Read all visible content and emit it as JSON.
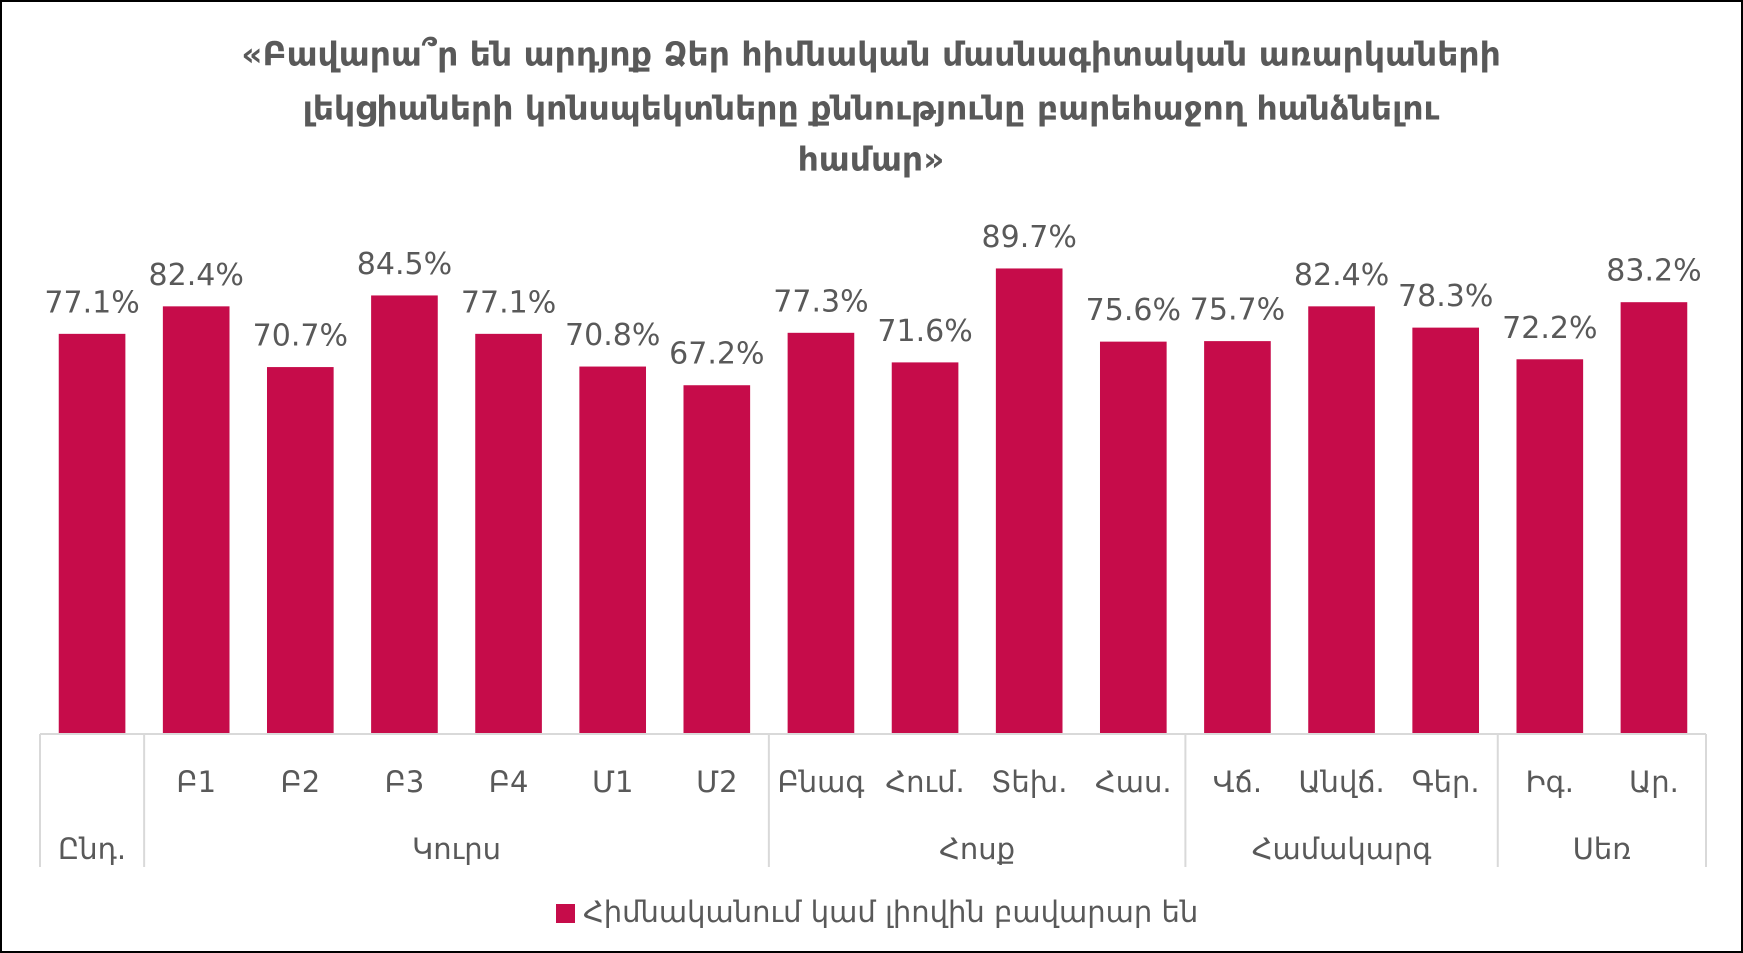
{
  "chart_data": {
    "type": "bar",
    "title": [
      "«Բավարա՞ր են արդյոք Ձեր հիմնական մասնագիտական առարկաների",
      "լեկցիաների կոնսպեկտները քննությունը բարեհաջող հանձնելու",
      "համար»"
    ],
    "groups": [
      {
        "name": "Ընդ.",
        "categories": [
          null
        ]
      },
      {
        "name": "Կուրս",
        "categories": [
          "Բ1",
          "Բ2",
          "Բ3",
          "Բ4",
          "Մ1",
          "Մ2"
        ]
      },
      {
        "name": "Հոսք",
        "categories": [
          "Բնագ",
          "Հում.",
          "Տեխ.",
          "Հաս."
        ]
      },
      {
        "name": "Համակարգ",
        "categories": [
          "Վճ.",
          "Անվճ.",
          "Գեր."
        ]
      },
      {
        "name": "Սեռ",
        "categories": [
          "Իգ.",
          "Ար."
        ]
      }
    ],
    "series": [
      {
        "name": "Հիմնականում կամ լիովին բավարար են",
        "color": "#c60c4a",
        "values": [
          77.1,
          82.4,
          70.7,
          84.5,
          77.1,
          70.8,
          67.2,
          77.3,
          71.6,
          89.7,
          75.6,
          75.7,
          82.4,
          78.3,
          72.2,
          83.2
        ],
        "value_labels": [
          "77.1%",
          "82.4%",
          "70.7%",
          "84.5%",
          "77.1%",
          "70.8%",
          "67.2%",
          "77.3%",
          "71.6%",
          "89.7%",
          "75.6%",
          "75.7%",
          "82.4%",
          "78.3%",
          "72.2%",
          "83.2%"
        ]
      }
    ],
    "ylim": [
      0,
      100
    ],
    "legend": "bottom"
  }
}
